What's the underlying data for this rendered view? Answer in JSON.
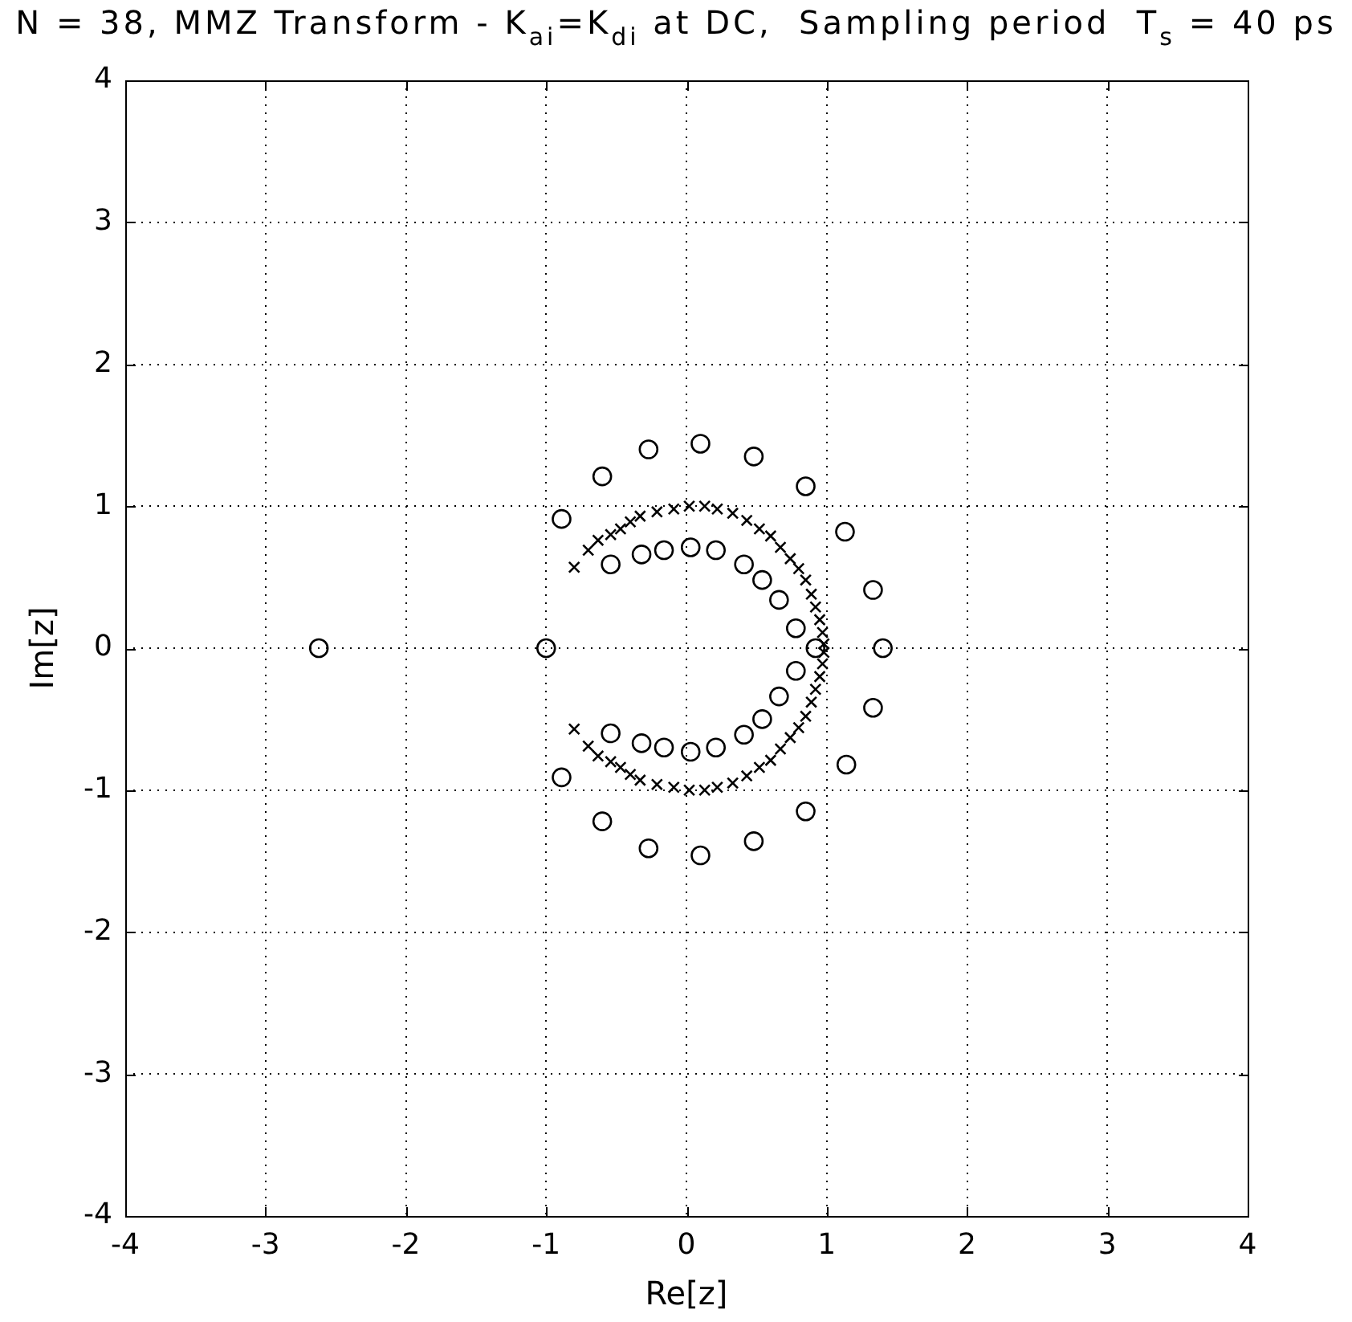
{
  "chart_data": {
    "type": "scatter",
    "title": "N = 38, MMZ Transform - K$_{ai}$=K$_{di}$ at DC,  Sampling period  T$_{s}$ = 40 ps",
    "xlabel": "Re[z]",
    "ylabel": "Im[z]",
    "xlim": [
      -4,
      4
    ],
    "ylim": [
      -4,
      4
    ],
    "xticks": [
      -4,
      -3,
      -2,
      -1,
      0,
      1,
      2,
      3,
      4
    ],
    "yticks": [
      -4,
      -3,
      -2,
      -1,
      0,
      1,
      2,
      3,
      4
    ],
    "grid": true,
    "series": [
      {
        "color": "#000000",
        "marker": "circle",
        "x": [
          -0.89,
          -0.6,
          -0.27,
          0.1,
          0.48,
          0.85,
          1.13,
          1.33,
          1.4,
          1.33,
          1.14,
          0.85,
          0.48,
          0.1,
          -0.27,
          -0.6,
          -0.89,
          -0.54,
          -0.32,
          -0.16,
          0.03,
          0.21,
          0.41,
          0.54,
          0.66,
          0.78,
          0.92,
          0.78,
          0.66,
          0.54,
          0.41,
          0.21,
          0.03,
          -0.16,
          -0.32,
          -0.54,
          -1.0,
          -2.62
        ],
        "values": [
          0.91,
          1.21,
          1.4,
          1.44,
          1.35,
          1.14,
          0.82,
          0.41,
          0,
          -0.42,
          -0.82,
          -1.15,
          -1.36,
          -1.46,
          -1.41,
          -1.22,
          -0.91,
          0.59,
          0.66,
          0.69,
          0.71,
          0.69,
          0.59,
          0.48,
          0.34,
          0.14,
          0,
          -0.16,
          -0.34,
          -0.5,
          -0.61,
          -0.7,
          -0.73,
          -0.7,
          -0.67,
          -0.6,
          0,
          0
        ]
      },
      {
        "color": "#000000",
        "marker": "cross",
        "x": [
          -0.8,
          -0.7,
          -0.63,
          -0.54,
          -0.47,
          -0.4,
          -0.33,
          -0.21,
          -0.09,
          0.02,
          0.13,
          0.22,
          0.33,
          0.43,
          0.52,
          0.6,
          0.67,
          0.74,
          0.8,
          0.85,
          0.89,
          0.92,
          0.95,
          0.97,
          0.98,
          0.98,
          0.97,
          0.95,
          0.92,
          0.89,
          0.85,
          0.8,
          0.74,
          0.67,
          0.6,
          0.52,
          0.43,
          0.33,
          0.22,
          0.13,
          0.02,
          -0.09,
          -0.21,
          -0.33,
          -0.4,
          -0.47,
          -0.54,
          -0.63,
          -0.7,
          -0.8
        ],
        "values": [
          0.57,
          0.69,
          0.76,
          0.8,
          0.84,
          0.89,
          0.93,
          0.96,
          0.98,
          1.0,
          1.0,
          0.98,
          0.95,
          0.9,
          0.84,
          0.79,
          0.71,
          0.63,
          0.56,
          0.48,
          0.38,
          0.29,
          0.2,
          0.11,
          0.03,
          -0.03,
          -0.11,
          -0.2,
          -0.29,
          -0.38,
          -0.48,
          -0.56,
          -0.63,
          -0.71,
          -0.79,
          -0.84,
          -0.9,
          -0.95,
          -0.98,
          -1.0,
          -1.0,
          -0.98,
          -0.96,
          -0.93,
          -0.89,
          -0.84,
          -0.8,
          -0.76,
          -0.69,
          -0.57
        ]
      }
    ]
  }
}
